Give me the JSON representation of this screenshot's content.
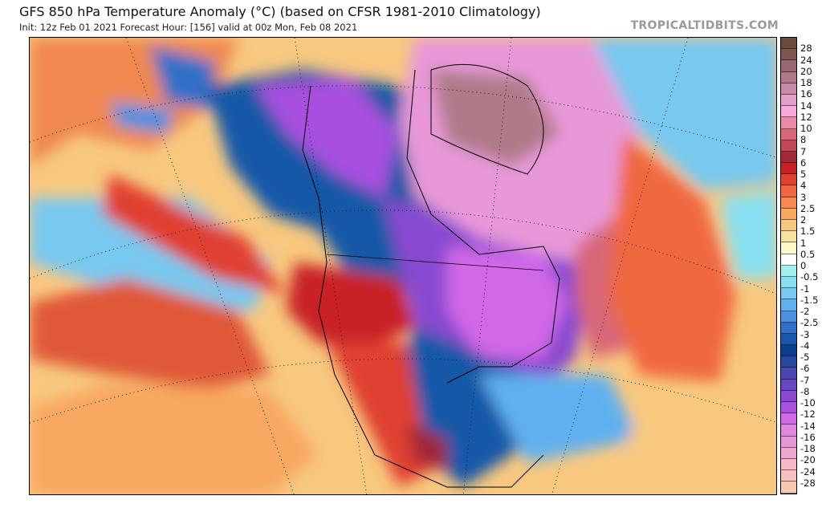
{
  "header": {
    "title": "GFS 850 hPa Temperature Anomaly (°C) (based on CFSR 1981-2010 Climatology)",
    "subtitle": "Init: 12z Feb 01 2021   Forecast Hour: [156]   valid at 00z Mon, Feb 08 2021",
    "brand": "TROPICALTIDBITS.COM"
  },
  "colorbar": {
    "labels": [
      "28",
      "24",
      "20",
      "18",
      "16",
      "14",
      "12",
      "10",
      "8",
      "7",
      "6",
      "5",
      "4",
      "3",
      "2.5",
      "2",
      "1.5",
      "1",
      "0.5",
      "0",
      "-0.5",
      "-1",
      "-1.5",
      "-2",
      "-2.5",
      "-3",
      "-4",
      "-5",
      "-6",
      "-7",
      "-8",
      "-10",
      "-12",
      "-14",
      "-16",
      "-18",
      "-20",
      "-24",
      "-28"
    ],
    "colors": [
      "#6b4a3a",
      "#7f5550",
      "#9a6670",
      "#b07a88",
      "#c88aa8",
      "#e0a0c8",
      "#f8a8dc",
      "#e88aa8",
      "#d86878",
      "#c04858",
      "#a02838",
      "#c82028",
      "#e04030",
      "#f06840",
      "#f88850",
      "#f8a860",
      "#f8c880",
      "#f8e0a0",
      "#fff8c8",
      "#ffffff",
      "#a0f0f0",
      "#88e0f0",
      "#78c8f0",
      "#60b0f0",
      "#4890e0",
      "#3070c8",
      "#1858a8",
      "#084090",
      "#2848a0",
      "#4848b0",
      "#6848c0",
      "#8848d0",
      "#a850e0",
      "#d068e8",
      "#e088e0",
      "#e898d8",
      "#f0a8d0",
      "#f8b8c8",
      "#f8c0c0",
      "#f8c8b0"
    ]
  }
}
